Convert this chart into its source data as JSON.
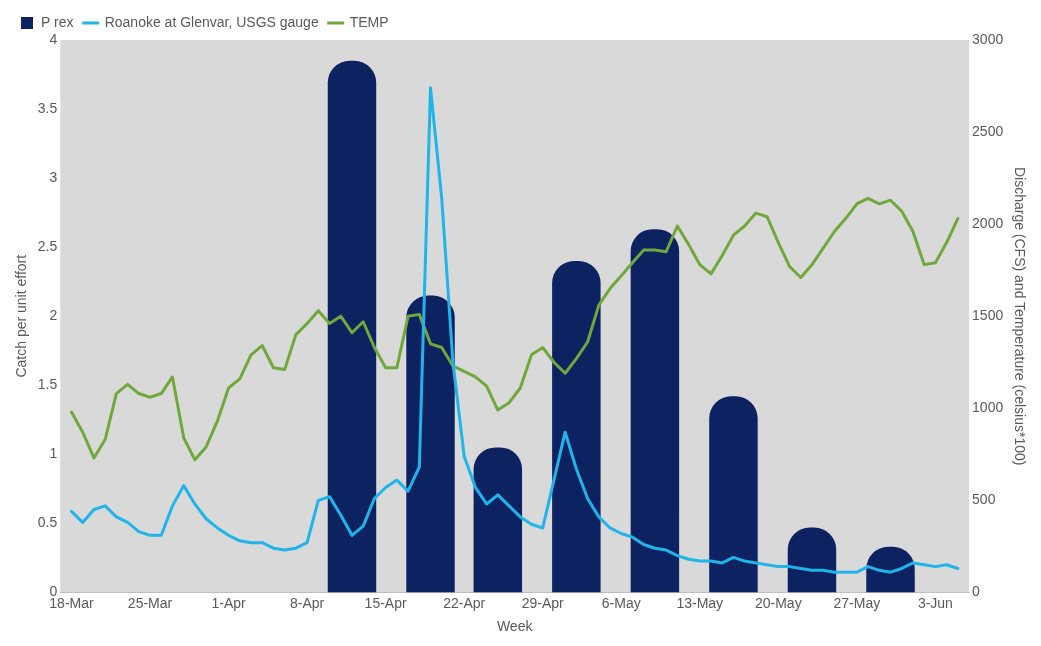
{
  "chart_data": {
    "type": "bar",
    "xlabel": "Week",
    "ylabel": "Catch per unit effort",
    "y2label": "Discharge (CFS) and Temperature (celsius*100)",
    "legend": "top left",
    "grid": false,
    "xlim": [
      "--03-17",
      "--06-06"
    ],
    "xticks": [
      {
        "value": "--03-18",
        "label": "18-Mar"
      },
      {
        "value": "--03-25",
        "label": "25-Mar"
      },
      {
        "value": "--04-01",
        "label": "1-Apr"
      },
      {
        "value": "--04-08",
        "label": "8-Apr"
      },
      {
        "value": "--04-15",
        "label": "15-Apr"
      },
      {
        "value": "--04-22",
        "label": "22-Apr"
      },
      {
        "value": "--04-29",
        "label": "29-Apr"
      },
      {
        "value": "--05-06",
        "label": "6-May"
      },
      {
        "value": "--05-13",
        "label": "13-May"
      },
      {
        "value": "--05-20",
        "label": "20-May"
      },
      {
        "value": "--05-27",
        "label": "27-May"
      },
      {
        "value": "--06-03",
        "label": "3-Jun"
      }
    ],
    "ylim": [
      0,
      4
    ],
    "yticks": [
      0,
      0.5,
      1,
      1.5,
      2,
      2.5,
      3,
      3.5,
      4
    ],
    "y2lim": [
      0,
      3000
    ],
    "y2ticks": [
      0,
      500,
      1000,
      1500,
      2000,
      2500,
      3000
    ],
    "series": [
      {
        "name": "P rex",
        "color": "#0d2260",
        "x": [
          "--04-12",
          "--04-19",
          "--04-25",
          "--05-02",
          "--05-09",
          "--05-16",
          "--05-23",
          "--05-30"
        ],
        "values": [
          3.85,
          2.15,
          1.05,
          2.4,
          2.63,
          1.42,
          0.47,
          0.33
        ]
      },
      {
        "name": "Roanoke at Glenvar, USGS gauge",
        "type": "line",
        "axis": "y2",
        "color": "#1fb4ea",
        "x": [
          "--03-18",
          "--03-19",
          "--03-20",
          "--03-21",
          "--03-22",
          "--03-23",
          "--03-24",
          "--03-25",
          "--03-26",
          "--03-27",
          "--03-28",
          "--03-29",
          "--03-30",
          "--03-31",
          "--04-01",
          "--04-02",
          "--04-03",
          "--04-04",
          "--04-05",
          "--04-06",
          "--04-07",
          "--04-08",
          "--04-09",
          "--04-10",
          "--04-11",
          "--04-12",
          "--04-13",
          "--04-14",
          "--04-15",
          "--04-16",
          "--04-17",
          "--04-18",
          "--04-19",
          "--04-20",
          "--04-21",
          "--04-22",
          "--04-23",
          "--04-24",
          "--04-25",
          "--04-26",
          "--04-27",
          "--04-28",
          "--04-29",
          "--04-30",
          "--05-01",
          "--05-02",
          "--05-03",
          "--05-04",
          "--05-05",
          "--05-06",
          "--05-07",
          "--05-08",
          "--05-09",
          "--05-10",
          "--05-11",
          "--05-12",
          "--05-13",
          "--05-14",
          "--05-15",
          "--05-16",
          "--05-17",
          "--05-18",
          "--05-19",
          "--05-20",
          "--05-21",
          "--05-22",
          "--05-23",
          "--05-24",
          "--05-25",
          "--05-26",
          "--05-27",
          "--05-28",
          "--05-29",
          "--05-30",
          "--05-31",
          "--06-01",
          "--06-02",
          "--06-03",
          "--06-04",
          "--06-05"
        ],
        "values": [
          440,
          380,
          450,
          470,
          410,
          380,
          330,
          310,
          310,
          470,
          580,
          480,
          400,
          350,
          310,
          280,
          270,
          270,
          240,
          230,
          240,
          270,
          500,
          520,
          420,
          310,
          360,
          510,
          570,
          610,
          550,
          680,
          2740,
          2140,
          1250,
          740,
          570,
          480,
          530,
          470,
          410,
          370,
          350,
          610,
          870,
          670,
          510,
          410,
          350,
          320,
          300,
          260,
          240,
          230,
          200,
          180,
          170,
          170,
          160,
          190,
          170,
          160,
          150,
          140,
          140,
          130,
          120,
          120,
          110,
          110,
          110,
          140,
          120,
          110,
          130,
          160,
          150,
          140,
          150,
          130
        ]
      },
      {
        "name": "TEMP",
        "type": "line",
        "axis": "y2",
        "color": "#70a83c",
        "x": [
          "--03-18",
          "--03-19",
          "--03-20",
          "--03-21",
          "--03-22",
          "--03-23",
          "--03-24",
          "--03-25",
          "--03-26",
          "--03-27",
          "--03-28",
          "--03-29",
          "--03-30",
          "--03-31",
          "--04-01",
          "--04-02",
          "--04-03",
          "--04-04",
          "--04-05",
          "--04-06",
          "--04-07",
          "--04-08",
          "--04-09",
          "--04-10",
          "--04-11",
          "--04-12",
          "--04-13",
          "--04-14",
          "--04-15",
          "--04-16",
          "--04-17",
          "--04-18",
          "--04-19",
          "--04-20",
          "--04-21",
          "--04-22",
          "--04-23",
          "--04-24",
          "--04-25",
          "--04-26",
          "--04-27",
          "--04-28",
          "--04-29",
          "--04-30",
          "--05-01",
          "--05-02",
          "--05-03",
          "--05-04",
          "--05-05",
          "--05-06",
          "--05-07",
          "--05-08",
          "--05-09",
          "--05-10",
          "--05-11",
          "--05-12",
          "--05-13",
          "--05-14",
          "--05-15",
          "--05-16",
          "--05-17",
          "--05-18",
          "--05-19",
          "--05-20",
          "--05-21",
          "--05-22",
          "--05-23",
          "--05-24",
          "--05-25",
          "--05-26",
          "--05-27",
          "--05-28",
          "--05-29",
          "--05-30",
          "--05-31",
          "--06-01",
          "--06-02",
          "--06-03",
          "--06-04",
          "--06-05"
        ],
        "values": [
          980,
          870,
          730,
          830,
          1080,
          1130,
          1080,
          1060,
          1080,
          1170,
          840,
          720,
          790,
          930,
          1110,
          1160,
          1290,
          1340,
          1220,
          1210,
          1400,
          1460,
          1530,
          1460,
          1500,
          1410,
          1470,
          1330,
          1220,
          1220,
          1500,
          1510,
          1350,
          1330,
          1230,
          1200,
          1170,
          1120,
          990,
          1030,
          1110,
          1290,
          1330,
          1250,
          1190,
          1270,
          1360,
          1560,
          1650,
          1720,
          1790,
          1860,
          1860,
          1850,
          1990,
          1890,
          1780,
          1730,
          1830,
          1940,
          1990,
          2060,
          2040,
          1900,
          1770,
          1710,
          1780,
          1870,
          1960,
          2030,
          2110,
          2140,
          2110,
          2130,
          2070,
          1960,
          1780,
          1790,
          1900,
          2030
        ]
      }
    ]
  }
}
